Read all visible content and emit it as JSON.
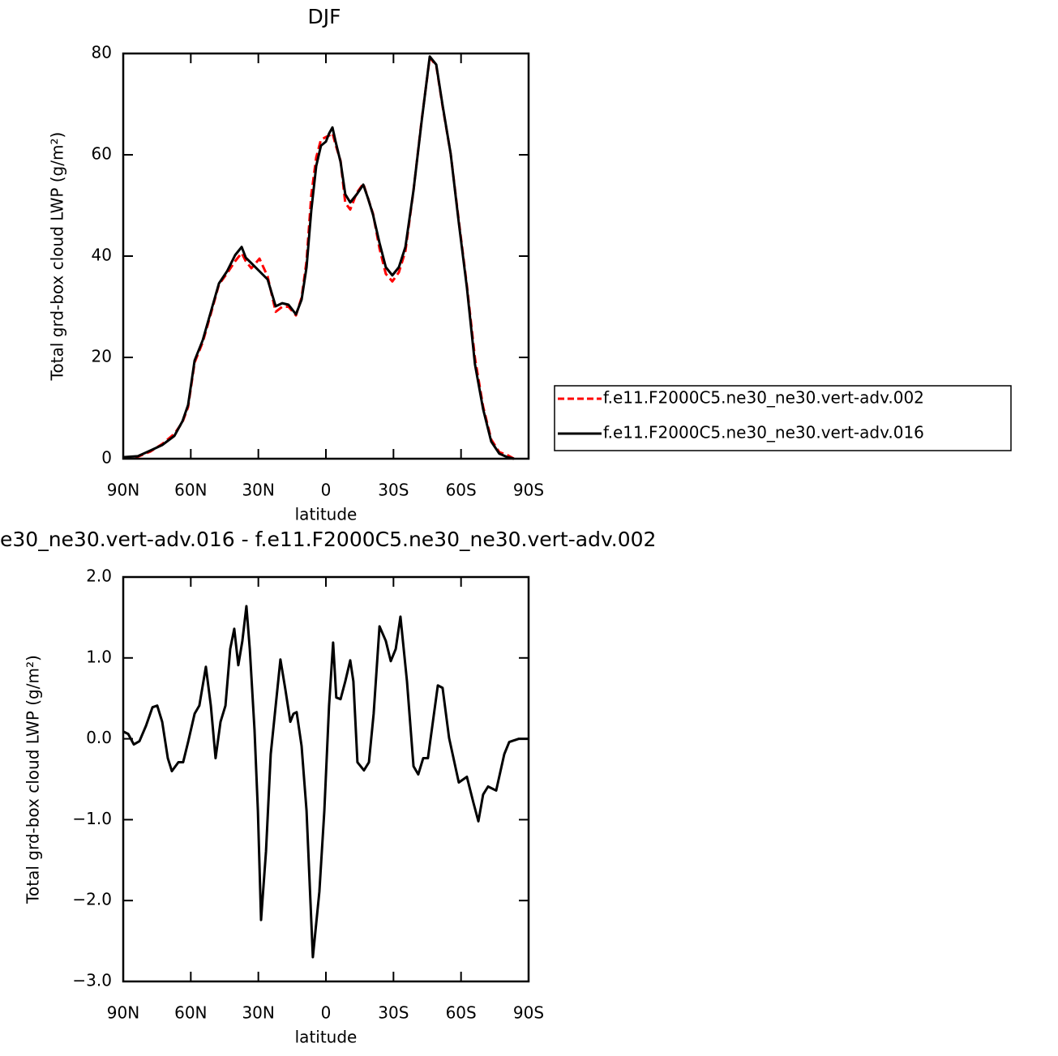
{
  "chart_data": [
    {
      "type": "line",
      "title": "DJF",
      "x_label": "latitude",
      "y_label": "Total grd-box cloud LWP (g/m²)",
      "x": [
        90,
        83.5,
        78,
        72.7,
        67.3,
        63.7,
        61.2,
        58.3,
        54.7,
        51.1,
        47.5,
        43.9,
        40.3,
        37.4,
        35.6,
        33.1,
        29.5,
        25.9,
        22.3,
        19.4,
        16.6,
        13.3,
        10.8,
        8.6,
        6.5,
        4.3,
        2.2,
        0,
        -1.4,
        -2.9,
        -4.3,
        -6.5,
        -8.6,
        -10.8,
        -13.7,
        -16.6,
        -18.7,
        -20.9,
        -23.8,
        -26.6,
        -29.5,
        -32.4,
        -35.3,
        -38.9,
        -42.5,
        -46.1,
        -49,
        -51.8,
        -55.4,
        -59,
        -62.6,
        -66.2,
        -69.8,
        -73.4,
        -77,
        -80.6,
        -83.5
      ],
      "series": [
        {
          "name": "f.e11.F2000C5.ne30_ne30.vert-adv.002",
          "color": "#ff0000",
          "dashed": true,
          "values": [
            0.2,
            0.4,
            1.4,
            2.9,
            4.9,
            7.2,
            10.2,
            19,
            23,
            28.6,
            34.4,
            36.6,
            39,
            40.6,
            39,
            37.6,
            39.5,
            36,
            29,
            30,
            30,
            28.3,
            31.8,
            39,
            52,
            59.5,
            63,
            63.5,
            63.8,
            64.3,
            62,
            58.8,
            50.5,
            49.2,
            52.5,
            54.3,
            51.4,
            48.4,
            41.5,
            36.5,
            35,
            36.8,
            41,
            53,
            66.8,
            79.2,
            77.6,
            69.6,
            60.2,
            47,
            34.2,
            19.8,
            10.3,
            3.8,
            1.3,
            0.7,
            0
          ]
        },
        {
          "name": "f.e11.F2000C5.ne30_ne30.vert-adv.016",
          "color": "#000000",
          "dashed": false,
          "values": [
            0.3,
            0.5,
            1.6,
            2.7,
            4.5,
            7.4,
            10.6,
            19.4,
            23.4,
            29,
            34.6,
            37,
            40.2,
            41.8,
            39.7,
            38.6,
            37,
            35.4,
            30.1,
            30.7,
            30.4,
            28.5,
            31.4,
            37.8,
            49,
            57.8,
            61.8,
            62.6,
            64.2,
            65.4,
            62.6,
            58.6,
            52.2,
            50.6,
            52.2,
            54.1,
            51.4,
            48.2,
            42.6,
            37.8,
            36.2,
            37.8,
            41.8,
            53,
            66.6,
            79.4,
            77.8,
            69.8,
            60.2,
            46.6,
            33.8,
            18.6,
            9.8,
            3.4,
            1,
            0.3,
            0
          ]
        }
      ],
      "xlim": [
        90,
        -90
      ],
      "xticks": [
        {
          "value": 90,
          "label": "90N"
        },
        {
          "value": 60,
          "label": "60N"
        },
        {
          "value": 30,
          "label": "30N"
        },
        0,
        {
          "value": -30,
          "label": "30S"
        },
        {
          "value": -60,
          "label": "60S"
        },
        {
          "value": -90,
          "label": "90S"
        }
      ],
      "ylim": [
        0,
        80
      ],
      "yticks": [
        0,
        20,
        40,
        60,
        80
      ],
      "legend": "right"
    },
    {
      "type": "line",
      "title": "e30_ne30.vert-adv.016 - f.e11.F2000C5.ne30_ne30.vert-adv.002",
      "x_label": "latitude",
      "y_label": "Total grd-box cloud LWP (g/m²)",
      "x": [
        90,
        87.8,
        85.3,
        82.8,
        79.9,
        77,
        74.9,
        72.7,
        70.2,
        68.4,
        65.5,
        63.4,
        61.2,
        58.3,
        56.2,
        53.3,
        51.1,
        49,
        46.8,
        44.6,
        42.5,
        40.7,
        38.9,
        37.1,
        35.3,
        33.8,
        31.7,
        30.2,
        28.8,
        26.6,
        24.5,
        22.3,
        20.2,
        18,
        15.8,
        14.4,
        13,
        10.8,
        8.6,
        5.8,
        2.9,
        0.7,
        -1.4,
        -3.2,
        -4.6,
        -6.5,
        -8.6,
        -10.8,
        -12.2,
        -14,
        -16.9,
        -19.1,
        -21.2,
        -23.8,
        -26.6,
        -28.8,
        -31,
        -33.1,
        -36,
        -38.9,
        -41,
        -43.2,
        -45.3,
        -47.5,
        -49.7,
        -51.8,
        -54.7,
        -59,
        -62.6,
        -65.5,
        -67.7,
        -69.8,
        -72,
        -75.6,
        -79.2,
        -81.4,
        -83.5,
        -85.7,
        -90
      ],
      "series": [
        {
          "color": "#000000",
          "dashed": false,
          "values": [
            0.09,
            0.06,
            -0.07,
            -0.03,
            0.16,
            0.39,
            0.41,
            0.21,
            -0.24,
            -0.4,
            -0.29,
            -0.29,
            -0.04,
            0.31,
            0.41,
            0.89,
            0.41,
            -0.24,
            0.21,
            0.41,
            1.11,
            1.36,
            0.91,
            1.21,
            1.64,
            1.11,
            0.11,
            -0.89,
            -2.24,
            -1.39,
            -0.19,
            0.41,
            0.98,
            0.61,
            0.21,
            0.31,
            0.33,
            -0.09,
            -0.89,
            -2.7,
            -1.89,
            -0.89,
            0.41,
            1.19,
            0.51,
            0.49,
            0.71,
            0.97,
            0.71,
            -0.29,
            -0.39,
            -0.29,
            0.31,
            1.39,
            1.21,
            0.96,
            1.11,
            1.51,
            0.71,
            -0.34,
            -0.44,
            -0.24,
            -0.24,
            0.21,
            0.66,
            0.63,
            0.01,
            -0.54,
            -0.47,
            -0.79,
            -1.02,
            -0.69,
            -0.59,
            -0.64,
            -0.19,
            -0.04,
            -0.02,
            0,
            0
          ]
        }
      ],
      "xlim": [
        90,
        -90
      ],
      "xticks": [
        {
          "value": 90,
          "label": "90N"
        },
        {
          "value": 60,
          "label": "60N"
        },
        {
          "value": 30,
          "label": "30N"
        },
        0,
        {
          "value": -30,
          "label": "30S"
        },
        {
          "value": -60,
          "label": "60S"
        },
        {
          "value": -90,
          "label": "90S"
        }
      ],
      "ylim": [
        -3,
        2
      ],
      "yticks": [
        {
          "value": 2,
          "label": "2.0"
        },
        {
          "value": 1,
          "label": "1.0"
        },
        {
          "value": 0,
          "label": "0.0"
        },
        {
          "value": -1,
          "label": "−1.0"
        },
        {
          "value": -2,
          "label": "−2.0"
        },
        {
          "value": -3,
          "label": "−3.0"
        }
      ]
    }
  ]
}
